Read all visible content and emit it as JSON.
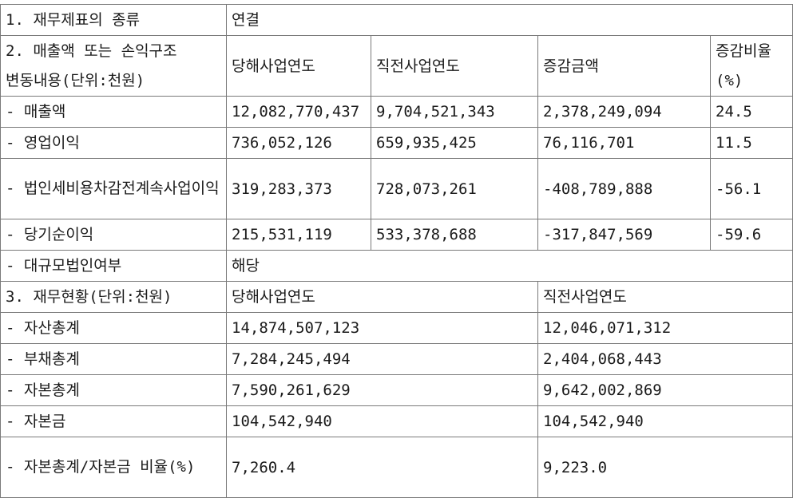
{
  "section1": {
    "label": "1. 재무제표의 종류",
    "value": "연결"
  },
  "section2": {
    "label": "2. 매출액 또는 손익구조 변동내용(단위:천원)",
    "headers": [
      "당해사업연도",
      "직전사업연도",
      "증감금액",
      "증감비율(%)"
    ],
    "rows": [
      {
        "label": "- 매출액",
        "current": "12,082,770,437",
        "prior": "9,704,521,343",
        "change": "2,378,249,094",
        "rate": "24.5"
      },
      {
        "label": "- 영업이익",
        "current": "736,052,126",
        "prior": "659,935,425",
        "change": "76,116,701",
        "rate": "11.5"
      },
      {
        "label": "- 법인세비용차감전계속사업이익",
        "current": "319,283,373",
        "prior": "728,073,261",
        "change": "-408,789,888",
        "rate": "-56.1"
      },
      {
        "label": "- 당기순이익",
        "current": "215,531,119",
        "prior": "533,378,688",
        "change": "-317,847,569",
        "rate": "-59.6"
      }
    ],
    "large_corp": {
      "label": "- 대규모법인여부",
      "value": "해당"
    }
  },
  "section3": {
    "label": "3. 재무현황(단위:천원)",
    "headers": [
      "당해사업연도",
      "직전사업연도"
    ],
    "rows": [
      {
        "label": "- 자산총계",
        "current": "14,874,507,123",
        "prior": "12,046,071,312"
      },
      {
        "label": "- 부채총계",
        "current": "7,284,245,494",
        "prior": "2,404,068,443"
      },
      {
        "label": "- 자본총계",
        "current": "7,590,261,629",
        "prior": "9,642,002,869"
      },
      {
        "label": "- 자본금",
        "current": "104,542,940",
        "prior": "104,542,940"
      },
      {
        "label": "- 자본총계/자본금 비율(%)",
        "current": "7,260.4",
        "prior": "9,223.0"
      }
    ]
  }
}
